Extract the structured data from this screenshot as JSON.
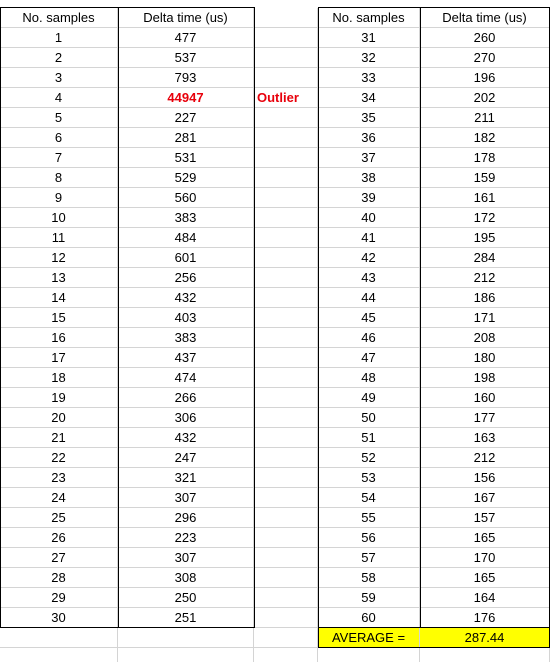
{
  "left_table": {
    "header_num": "No. samples",
    "header_delta": "Delta time (us)",
    "rows": [
      [
        "1",
        "477"
      ],
      [
        "2",
        "537"
      ],
      [
        "3",
        "793"
      ],
      [
        "4",
        "44947"
      ],
      [
        "5",
        "227"
      ],
      [
        "6",
        "281"
      ],
      [
        "7",
        "531"
      ],
      [
        "8",
        "529"
      ],
      [
        "9",
        "560"
      ],
      [
        "10",
        "383"
      ],
      [
        "11",
        "484"
      ],
      [
        "12",
        "601"
      ],
      [
        "13",
        "256"
      ],
      [
        "14",
        "432"
      ],
      [
        "15",
        "403"
      ],
      [
        "16",
        "383"
      ],
      [
        "17",
        "437"
      ],
      [
        "18",
        "474"
      ],
      [
        "19",
        "266"
      ],
      [
        "20",
        "306"
      ],
      [
        "21",
        "432"
      ],
      [
        "22",
        "247"
      ],
      [
        "23",
        "321"
      ],
      [
        "24",
        "307"
      ],
      [
        "25",
        "296"
      ],
      [
        "26",
        "223"
      ],
      [
        "27",
        "307"
      ],
      [
        "28",
        "308"
      ],
      [
        "29",
        "250"
      ],
      [
        "30",
        "251"
      ]
    ],
    "outlier_row": 3,
    "outlier_label": "Outlier",
    "outlier_color": "#e8000b"
  },
  "right_table": {
    "header_num": "No. samples",
    "header_delta": "Delta time (us)",
    "rows": [
      [
        "31",
        "260"
      ],
      [
        "32",
        "270"
      ],
      [
        "33",
        "196"
      ],
      [
        "34",
        "202"
      ],
      [
        "35",
        "211"
      ],
      [
        "36",
        "182"
      ],
      [
        "37",
        "178"
      ],
      [
        "38",
        "159"
      ],
      [
        "39",
        "161"
      ],
      [
        "40",
        "172"
      ],
      [
        "41",
        "195"
      ],
      [
        "42",
        "284"
      ],
      [
        "43",
        "212"
      ],
      [
        "44",
        "186"
      ],
      [
        "45",
        "171"
      ],
      [
        "46",
        "208"
      ],
      [
        "47",
        "180"
      ],
      [
        "48",
        "198"
      ],
      [
        "49",
        "160"
      ],
      [
        "50",
        "177"
      ],
      [
        "51",
        "163"
      ],
      [
        "52",
        "212"
      ],
      [
        "53",
        "156"
      ],
      [
        "54",
        "167"
      ],
      [
        "55",
        "157"
      ],
      [
        "56",
        "165"
      ],
      [
        "57",
        "170"
      ],
      [
        "58",
        "165"
      ],
      [
        "59",
        "164"
      ],
      [
        "60",
        "176"
      ]
    ]
  },
  "average": {
    "label": "AVERAGE =",
    "value": "287.44",
    "highlight_color": "#ffff00"
  }
}
